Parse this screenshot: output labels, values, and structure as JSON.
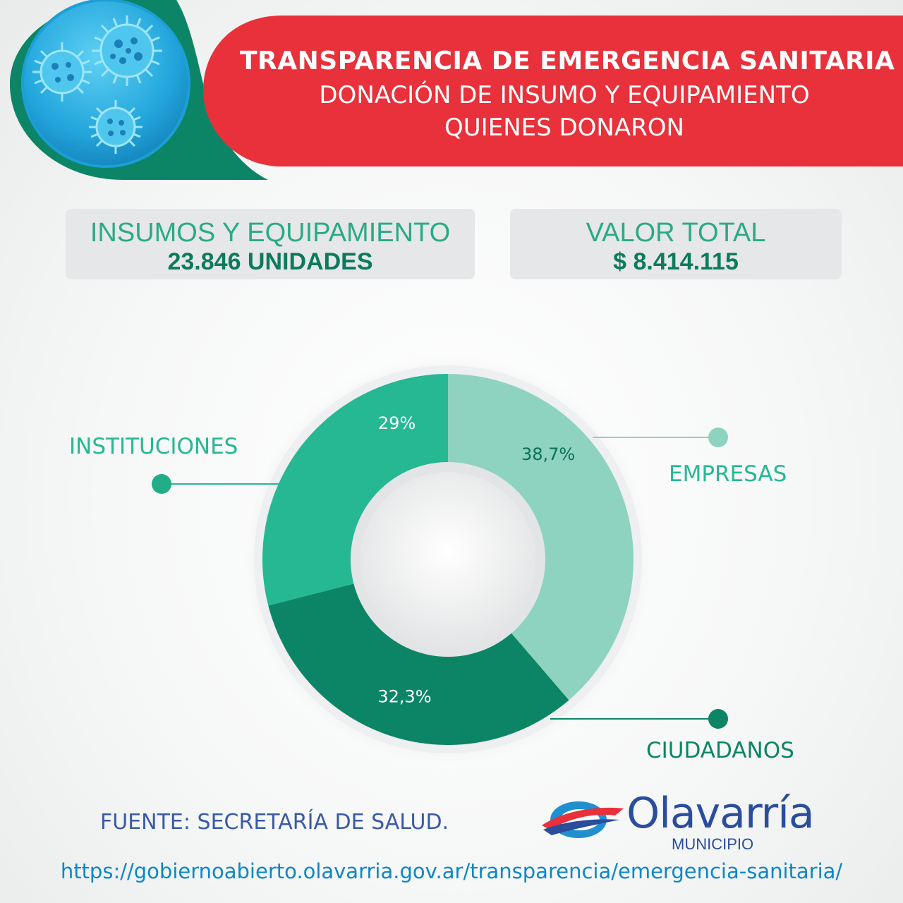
{
  "header": {
    "title_line1": "TRANSPARENCIA DE  EMERGENCIA SANITARIA",
    "title_line2": "DONACIÓN DE INSUMO Y EQUIPAMIENTO",
    "title_line3": "QUIENES DONARON"
  },
  "stats": {
    "units_label": "INSUMOS Y EQUIPAMIENTO",
    "units_value": "23.846 UNIDADES",
    "total_label": "VALOR TOTAL",
    "total_value": "$ 8.414.115"
  },
  "chart_data": {
    "type": "pie",
    "style": "donut",
    "categories": [
      "EMPRESAS",
      "CIUDADANOS",
      "INSTITUCIONES"
    ],
    "values": [
      38.7,
      32.3,
      29
    ],
    "value_labels": [
      "38,7%",
      "32,3%",
      "29%"
    ],
    "colors": [
      "#8dd3c0",
      "#0c8566",
      "#26b893"
    ]
  },
  "footer": {
    "source": "FUENTE:  SECRETARÍA DE SALUD.",
    "url": "https://gobiernoabierto.olavarria.gov.ar/transparencia/emergencia-sanitaria/",
    "brand_name": "Olavarría",
    "brand_sub": "MUNICIPIO"
  },
  "colors": {
    "banner_red": "#e8313a",
    "dark_green": "#0c8566",
    "teal": "#26b893",
    "light_teal": "#8dd3c0",
    "blue_text": "#3a5aa6"
  },
  "icons": [
    "virus-icon",
    "olavarria-logo-icon"
  ]
}
